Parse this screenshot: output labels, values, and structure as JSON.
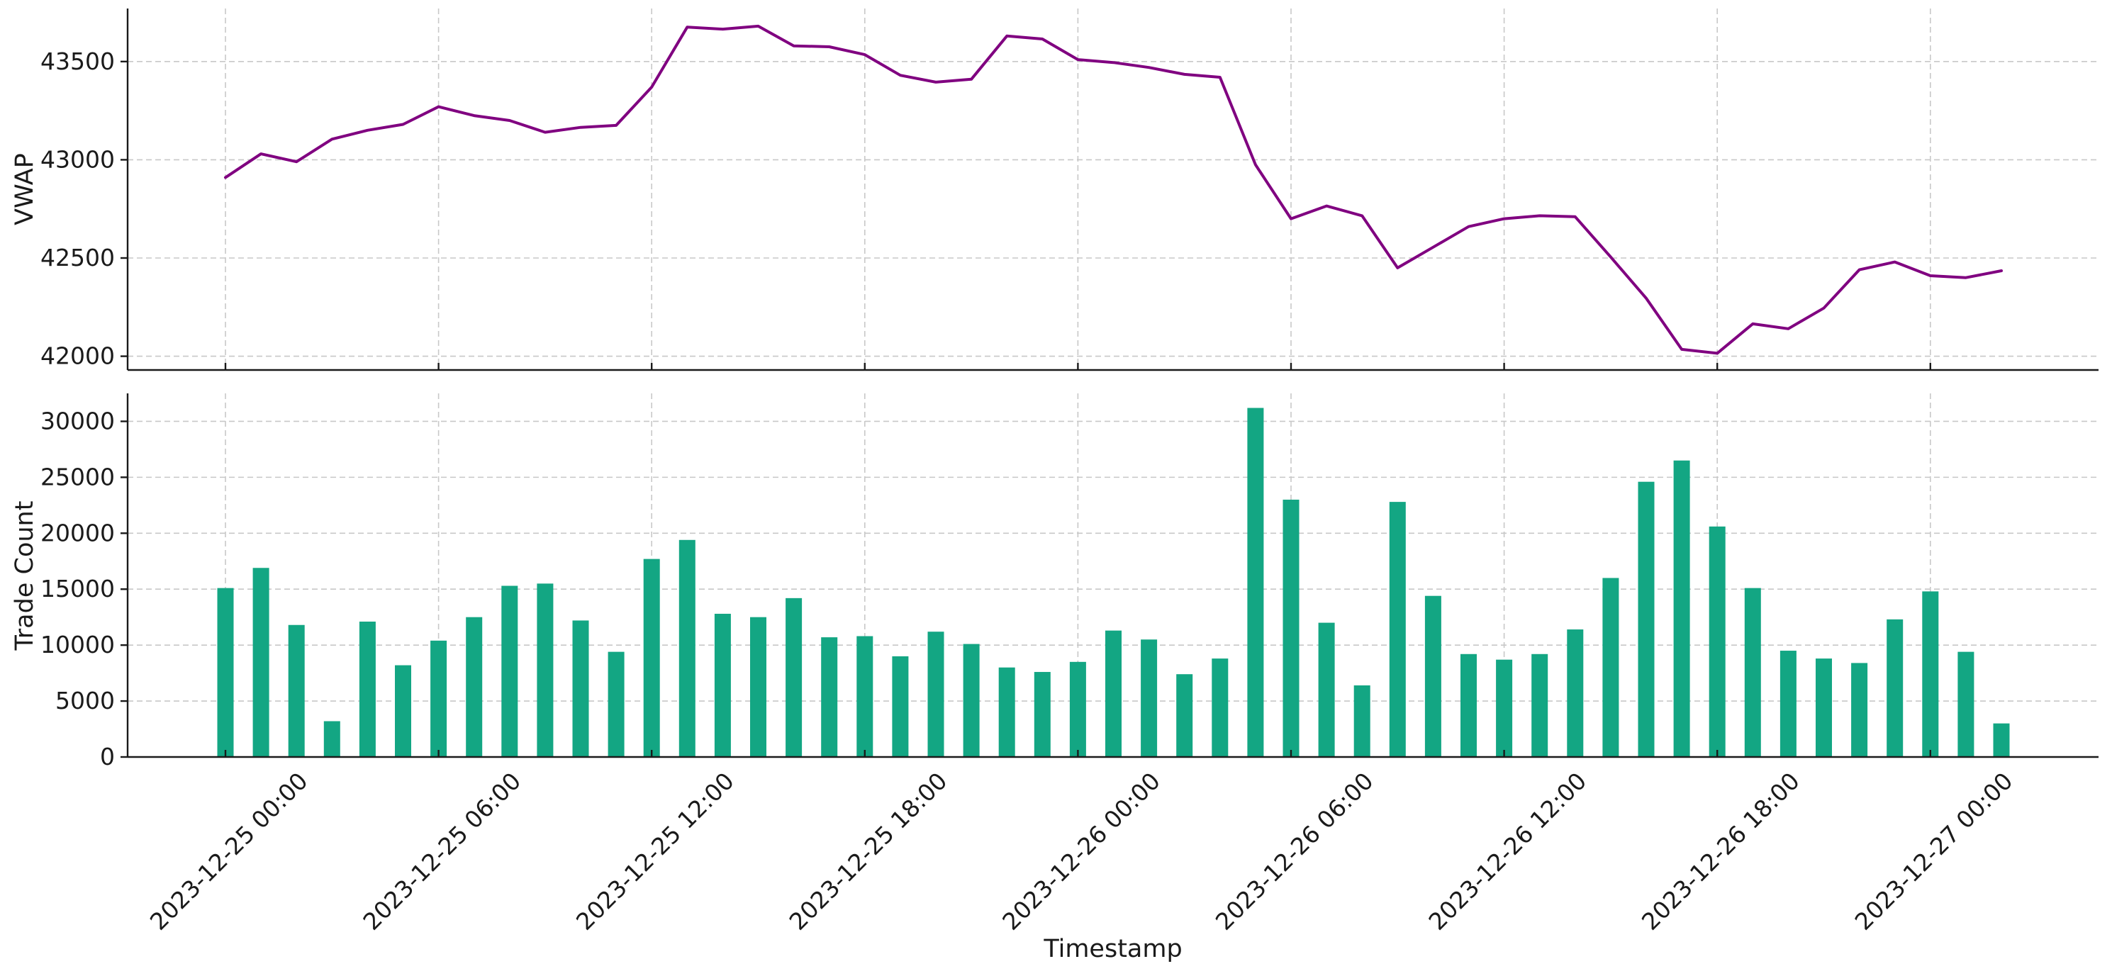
{
  "chart_data": [
    {
      "type": "line",
      "ylabel": "VWAP",
      "xlabel": "",
      "ylim": [
        41930,
        43770
      ],
      "yticks": [
        42000,
        42500,
        43000,
        43500
      ],
      "grid": true,
      "series": [
        {
          "color": "#800080",
          "x": [
            "2023-12-25 00:00",
            "2023-12-25 01:00",
            "2023-12-25 02:00",
            "2023-12-25 03:00",
            "2023-12-25 04:00",
            "2023-12-25 05:00",
            "2023-12-25 06:00",
            "2023-12-25 07:00",
            "2023-12-25 08:00",
            "2023-12-25 09:00",
            "2023-12-25 10:00",
            "2023-12-25 11:00",
            "2023-12-25 12:00",
            "2023-12-25 13:00",
            "2023-12-25 14:00",
            "2023-12-25 15:00",
            "2023-12-25 16:00",
            "2023-12-25 17:00",
            "2023-12-25 18:00",
            "2023-12-25 19:00",
            "2023-12-25 20:00",
            "2023-12-25 21:00",
            "2023-12-25 22:00",
            "2023-12-25 23:00",
            "2023-12-26 00:00",
            "2023-12-26 01:00",
            "2023-12-26 02:00",
            "2023-12-26 03:00",
            "2023-12-26 04:00",
            "2023-12-26 05:00",
            "2023-12-26 06:00",
            "2023-12-26 07:00",
            "2023-12-26 08:00",
            "2023-12-26 09:00",
            "2023-12-26 10:00",
            "2023-12-26 11:00",
            "2023-12-26 12:00",
            "2023-12-26 13:00",
            "2023-12-26 14:00",
            "2023-12-26 15:00",
            "2023-12-26 16:00",
            "2023-12-26 17:00",
            "2023-12-26 18:00",
            "2023-12-26 19:00",
            "2023-12-26 20:00",
            "2023-12-26 21:00",
            "2023-12-26 22:00",
            "2023-12-26 23:00",
            "2023-12-27 00:00",
            "2023-12-27 01:00",
            "2023-12-27 02:00"
          ],
          "values": [
            42910,
            43030,
            42990,
            43105,
            43150,
            43180,
            43270,
            43225,
            43200,
            43140,
            43165,
            43175,
            43370,
            43675,
            43665,
            43680,
            43580,
            43575,
            43535,
            43430,
            43395,
            43410,
            43630,
            43615,
            43510,
            43495,
            43470,
            43435,
            43420,
            42975,
            42700,
            42765,
            42715,
            42450,
            42555,
            42660,
            42700,
            42715,
            42710,
            42505,
            42295,
            42035,
            42015,
            42165,
            42140,
            42245,
            42440,
            42480,
            42410,
            42400,
            42435
          ]
        }
      ]
    },
    {
      "type": "bar",
      "ylabel": "Trade Count",
      "xlabel": "Timestamp",
      "ylim": [
        0,
        32500
      ],
      "yticks": [
        0,
        5000,
        10000,
        15000,
        20000,
        25000,
        30000
      ],
      "grid": true,
      "xtick_labels": [
        "2023-12-25 00:00",
        "2023-12-25 06:00",
        "2023-12-25 12:00",
        "2023-12-25 18:00",
        "2023-12-26 00:00",
        "2023-12-26 06:00",
        "2023-12-26 12:00",
        "2023-12-26 18:00",
        "2023-12-27 00:00"
      ],
      "series": [
        {
          "color": "#13a683",
          "x": [
            "2023-12-25 00:00",
            "2023-12-25 01:00",
            "2023-12-25 02:00",
            "2023-12-25 03:00",
            "2023-12-25 04:00",
            "2023-12-25 05:00",
            "2023-12-25 06:00",
            "2023-12-25 07:00",
            "2023-12-25 08:00",
            "2023-12-25 09:00",
            "2023-12-25 10:00",
            "2023-12-25 11:00",
            "2023-12-25 12:00",
            "2023-12-25 13:00",
            "2023-12-25 14:00",
            "2023-12-25 15:00",
            "2023-12-25 16:00",
            "2023-12-25 17:00",
            "2023-12-25 18:00",
            "2023-12-25 19:00",
            "2023-12-25 20:00",
            "2023-12-25 21:00",
            "2023-12-25 22:00",
            "2023-12-25 23:00",
            "2023-12-26 00:00",
            "2023-12-26 01:00",
            "2023-12-26 02:00",
            "2023-12-26 03:00",
            "2023-12-26 04:00",
            "2023-12-26 05:00",
            "2023-12-26 06:00",
            "2023-12-26 07:00",
            "2023-12-26 08:00",
            "2023-12-26 09:00",
            "2023-12-26 10:00",
            "2023-12-26 11:00",
            "2023-12-26 12:00",
            "2023-12-26 13:00",
            "2023-12-26 14:00",
            "2023-12-26 15:00",
            "2023-12-26 16:00",
            "2023-12-26 17:00",
            "2023-12-26 18:00",
            "2023-12-26 19:00",
            "2023-12-26 20:00",
            "2023-12-26 21:00",
            "2023-12-26 22:00",
            "2023-12-26 23:00",
            "2023-12-27 00:00",
            "2023-12-27 01:00",
            "2023-12-27 02:00"
          ],
          "values": [
            15100,
            16900,
            11800,
            3200,
            12100,
            8200,
            10400,
            12500,
            15300,
            15500,
            12200,
            9400,
            17700,
            19400,
            12800,
            12500,
            14200,
            10700,
            10800,
            9000,
            11200,
            10100,
            8000,
            7600,
            8500,
            11300,
            10500,
            7400,
            8800,
            31200,
            23000,
            12000,
            6400,
            22800,
            14400,
            9200,
            8700,
            9200,
            11400,
            16000,
            24600,
            26500,
            20600,
            15100,
            9500,
            8800,
            8400,
            12300,
            14800,
            9400,
            3000
          ]
        }
      ]
    }
  ]
}
